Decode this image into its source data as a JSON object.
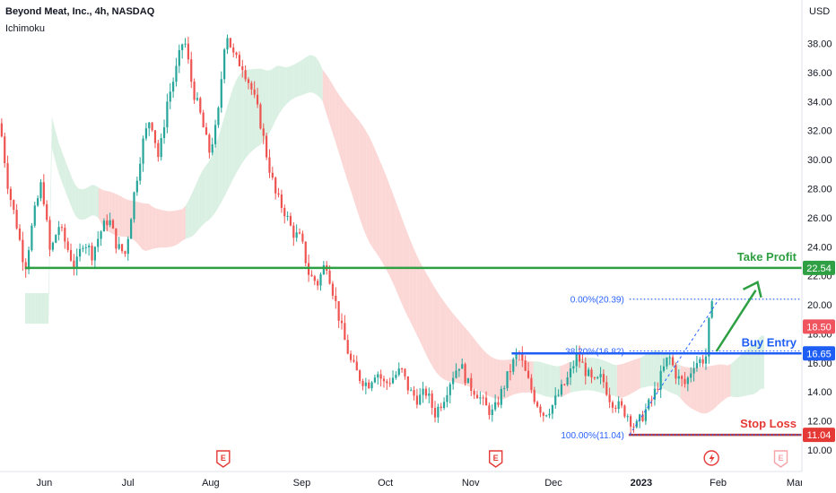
{
  "header": {
    "title": "Beyond Meat, Inc., 4h, NASDAQ",
    "indicator": "Ichimoku"
  },
  "axis": {
    "currency": "USD"
  },
  "chart_data": {
    "type": "candlestick",
    "symbol": "Beyond Meat, Inc., 4h, NASDAQ",
    "indicators": [
      "Ichimoku"
    ],
    "ylim": [
      10,
      40.5
    ],
    "y_ticks": [
      10.0,
      12.0,
      14.0,
      16.0,
      18.0,
      20.0,
      22.0,
      24.0,
      26.0,
      28.0,
      30.0,
      32.0,
      34.0,
      36.0,
      38.0
    ],
    "x_ticks": [
      {
        "label": "Jun",
        "x": 0.053
      },
      {
        "label": "Jul",
        "x": 0.153
      },
      {
        "label": "Aug",
        "x": 0.252
      },
      {
        "label": "Sep",
        "x": 0.361
      },
      {
        "label": "Oct",
        "x": 0.461
      },
      {
        "label": "Nov",
        "x": 0.563
      },
      {
        "label": "Dec",
        "x": 0.662
      },
      {
        "label": "2023",
        "x": 0.767,
        "bold": true
      },
      {
        "label": "Feb",
        "x": 0.859
      },
      {
        "label": "Mar",
        "x": 0.951
      }
    ],
    "price_path": [
      [
        0.0,
        32.5
      ],
      [
        0.01,
        28
      ],
      [
        0.02,
        25.5
      ],
      [
        0.03,
        22.5
      ],
      [
        0.04,
        26
      ],
      [
        0.05,
        28.5
      ],
      [
        0.06,
        23.5
      ],
      [
        0.07,
        25.5
      ],
      [
        0.08,
        24
      ],
      [
        0.09,
        22.5
      ],
      [
        0.1,
        24.5
      ],
      [
        0.11,
        23.5
      ],
      [
        0.12,
        25
      ],
      [
        0.13,
        26
      ],
      [
        0.14,
        24
      ],
      [
        0.15,
        23.5
      ],
      [
        0.16,
        27.5
      ],
      [
        0.17,
        31
      ],
      [
        0.18,
        33
      ],
      [
        0.19,
        30
      ],
      [
        0.2,
        34
      ],
      [
        0.21,
        36
      ],
      [
        0.22,
        38.5
      ],
      [
        0.23,
        35
      ],
      [
        0.24,
        33
      ],
      [
        0.25,
        30.5
      ],
      [
        0.26,
        32.5
      ],
      [
        0.27,
        39
      ],
      [
        0.28,
        37
      ],
      [
        0.29,
        36.5
      ],
      [
        0.3,
        35
      ],
      [
        0.31,
        33
      ],
      [
        0.32,
        30
      ],
      [
        0.33,
        27.5
      ],
      [
        0.34,
        26.5
      ],
      [
        0.35,
        25
      ],
      [
        0.36,
        24.5
      ],
      [
        0.37,
        22
      ],
      [
        0.38,
        21.5
      ],
      [
        0.39,
        23
      ],
      [
        0.4,
        20.5
      ],
      [
        0.41,
        18
      ],
      [
        0.42,
        16
      ],
      [
        0.43,
        15
      ],
      [
        0.44,
        14.5
      ],
      [
        0.45,
        15.5
      ],
      [
        0.46,
        14.5
      ],
      [
        0.47,
        15
      ],
      [
        0.48,
        15.5
      ],
      [
        0.49,
        14
      ],
      [
        0.5,
        13.5
      ],
      [
        0.51,
        14
      ],
      [
        0.52,
        12.5
      ],
      [
        0.53,
        13.5
      ],
      [
        0.54,
        15
      ],
      [
        0.55,
        16
      ],
      [
        0.56,
        14.5
      ],
      [
        0.57,
        14
      ],
      [
        0.58,
        13
      ],
      [
        0.59,
        12.5
      ],
      [
        0.6,
        14
      ],
      [
        0.61,
        15.5
      ],
      [
        0.62,
        16.8
      ],
      [
        0.63,
        15
      ],
      [
        0.64,
        13.5
      ],
      [
        0.65,
        12.5
      ],
      [
        0.66,
        13
      ],
      [
        0.67,
        14
      ],
      [
        0.68,
        15
      ],
      [
        0.69,
        16.5
      ],
      [
        0.7,
        15.5
      ],
      [
        0.71,
        14.5
      ],
      [
        0.72,
        15
      ],
      [
        0.73,
        13.5
      ],
      [
        0.74,
        13
      ],
      [
        0.75,
        12.5
      ],
      [
        0.76,
        11.5
      ],
      [
        0.77,
        12.5
      ],
      [
        0.78,
        13.5
      ],
      [
        0.79,
        15
      ],
      [
        0.8,
        16.5
      ],
      [
        0.81,
        15
      ],
      [
        0.82,
        14.5
      ],
      [
        0.83,
        16
      ],
      [
        0.84,
        16.2
      ],
      [
        0.845,
        16.5
      ],
      [
        0.85,
        20.2
      ],
      [
        0.855,
        19
      ]
    ],
    "fibonacci": [
      {
        "label": "0.00%(20.39)",
        "value": 20.39
      },
      {
        "label": "38.20%(16.82)",
        "value": 16.82
      },
      {
        "label": "100.00%(11.04)",
        "value": 11.04
      }
    ],
    "levels": [
      {
        "label": "Take Profit",
        "value": 22.54,
        "value_label": "22.54",
        "color": "#2ea043"
      },
      {
        "label": "Buy Entry",
        "value": 16.65,
        "value_label": "16.65",
        "color": "#1e5ef5"
      },
      {
        "label": "Stop Loss",
        "value": 11.04,
        "value_label": "11.04",
        "color": "#e53935"
      }
    ],
    "last_price": {
      "value": 18.5,
      "label": "18.50",
      "color": "#f0545f"
    },
    "earnings_markers": [
      {
        "label": "E",
        "x": 0.267
      },
      {
        "label": "E",
        "x": 0.593
      },
      {
        "label": "E",
        "x": 0.934,
        "future": true
      }
    ],
    "dividend_marker": {
      "x": 0.851
    }
  },
  "colors": {
    "up": "#26a69a",
    "down": "#ef5350",
    "cloud_bear": "#fbd7d6",
    "cloud_bull": "#d9f0e2"
  }
}
